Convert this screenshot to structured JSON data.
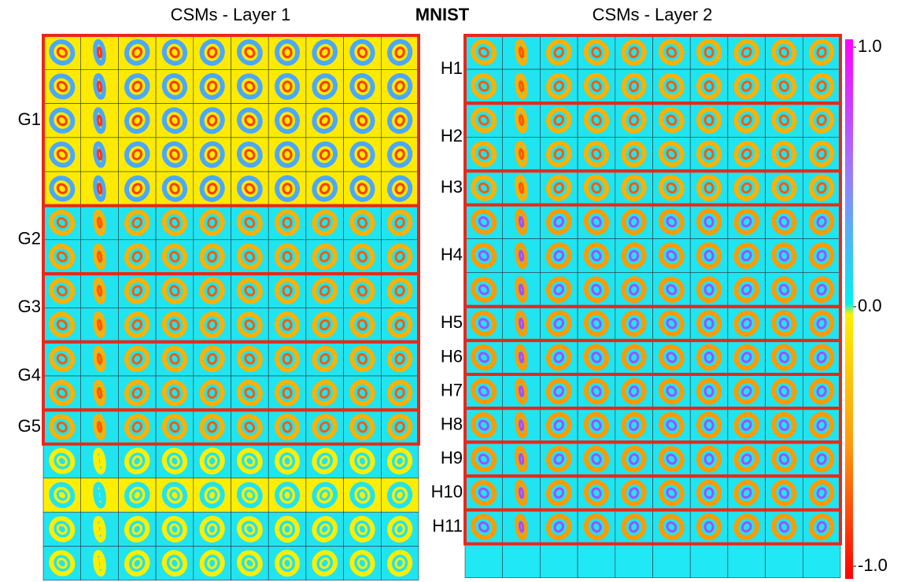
{
  "title": "MNIST",
  "panels": [
    {
      "title": "CSMs - Layer 1",
      "groups": [
        "G1",
        "G2",
        "G3",
        "G4",
        "G5"
      ]
    },
    {
      "title": "CSMs - Layer 2",
      "groups": [
        "H1",
        "H2",
        "H3",
        "H4",
        "H5",
        "H6",
        "H7",
        "H8",
        "H9",
        "H10",
        "H11"
      ]
    }
  ],
  "colorbar": {
    "range": [
      -1,
      1
    ],
    "ticks": [
      {
        "value": 1,
        "label": "1.0"
      },
      {
        "value": 0,
        "label": "0.0"
      },
      {
        "value": -1,
        "label": "-1.0"
      }
    ]
  }
}
